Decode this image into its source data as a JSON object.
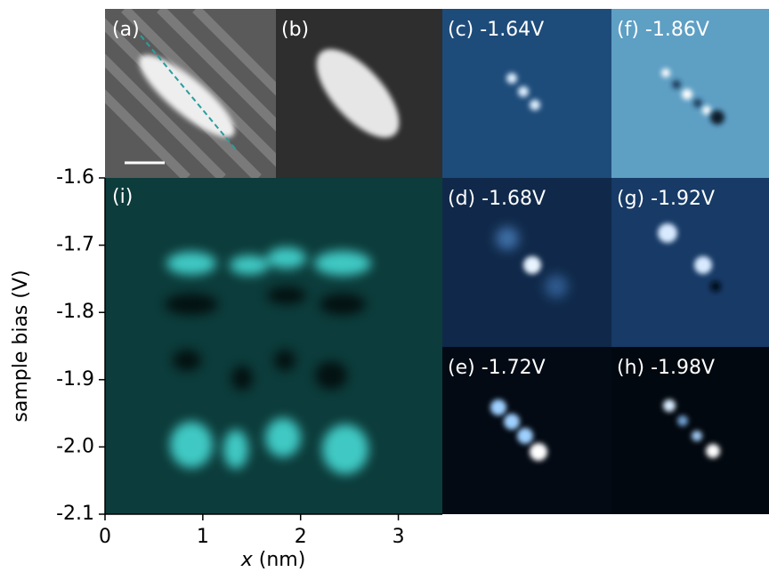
{
  "chart_data": {
    "type": "heatmap",
    "panel_label": "(i)",
    "y_label": "sample bias (V)",
    "x_label": {
      "symbol": "x",
      "unit": "(nm)"
    },
    "ylim": [
      -2.1,
      -1.6
    ],
    "yticks": [
      -1.6,
      -1.7,
      -1.8,
      -1.9,
      {
        "value": -2,
        "label": "-2.0"
      },
      -2.1
    ],
    "xlim": [
      0,
      3.45
    ],
    "xticks": [
      0,
      1,
      2,
      3
    ]
  },
  "panels": [
    "(a)",
    "(b)",
    "(c) -1.64V",
    "(f) -1.86V",
    "(d) -1.68V",
    "(g) -1.92V",
    "(e) -1.72V",
    "(h) -1.98V"
  ]
}
